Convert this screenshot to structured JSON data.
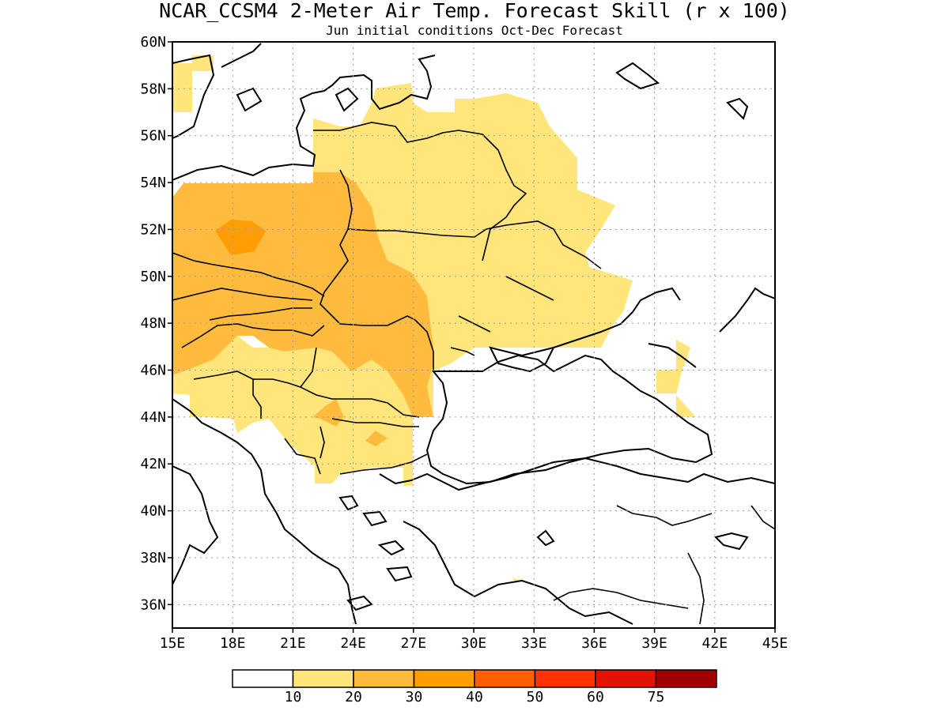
{
  "title": "NCAR_CCSM4 2-Meter Air Temp. Forecast Skill (r x 100)",
  "subtitle": "Jun initial conditions  Oct-Dec Forecast",
  "map": {
    "lon_range": [
      15,
      45
    ],
    "lat_range": [
      35,
      60
    ],
    "lon_ticks": [
      "15E",
      "18E",
      "21E",
      "24E",
      "27E",
      "30E",
      "33E",
      "36E",
      "39E",
      "42E",
      "45E"
    ],
    "lat_ticks": [
      "36N",
      "38N",
      "40N",
      "42N",
      "44N",
      "46N",
      "48N",
      "50N",
      "52N",
      "54N",
      "56N",
      "58N",
      "60N"
    ],
    "grid": true
  },
  "legend": {
    "labels": [
      "10",
      "20",
      "30",
      "40",
      "50",
      "60",
      "75"
    ],
    "colors": [
      "#ffffff",
      "#ffe57a",
      "#ffbb3d",
      "#ff9e00",
      "#ff6000",
      "#ff3300",
      "#e01400",
      "#a00000"
    ]
  }
}
